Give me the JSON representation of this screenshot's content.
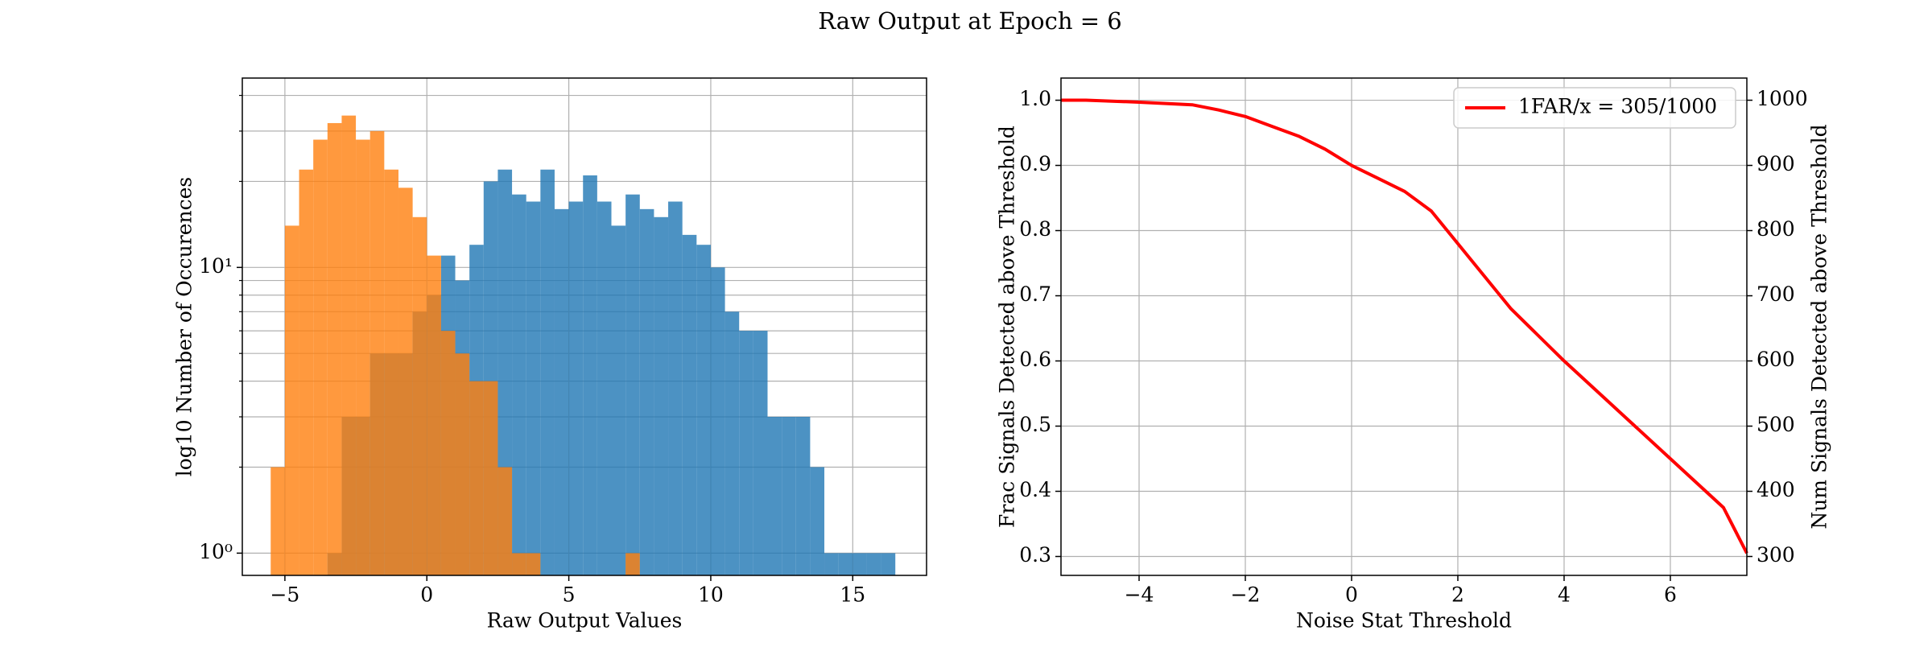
{
  "title": "Raw Output at Epoch = 6",
  "chart_data": [
    {
      "type": "histogram",
      "xlabel": "Raw Output Values",
      "ylabel": "log10 Number of Occurences",
      "log_y": true,
      "grid": true,
      "xlim": [
        -6.5,
        17.6
      ],
      "ylim": [
        0.836,
        46
      ],
      "xticks": [
        {
          "value": -5,
          "label": "−5"
        },
        0,
        5,
        10,
        15
      ],
      "yticks": [
        {
          "value": 1,
          "label": "10⁰"
        },
        {
          "value": 10,
          "label": "10¹"
        }
      ],
      "yminorticks": [
        2,
        3,
        4,
        5,
        6,
        7,
        8,
        9,
        20,
        30,
        40
      ],
      "series": [
        {
          "color": "#1f77b4",
          "bins": [
            -3.5,
            -3,
            -2.5,
            -2,
            -1.5,
            -1,
            -0.5,
            0,
            0.5,
            1,
            1.5,
            2,
            2.5,
            3,
            3.5,
            4,
            4.5,
            5,
            5.5,
            6,
            6.5,
            7,
            7.5,
            8,
            8.5,
            9,
            9.5,
            10,
            10.5,
            11,
            11.5,
            12,
            12.5,
            13,
            13.5,
            14,
            14.5,
            15,
            15.5,
            16,
            16.5
          ],
          "values": [
            1,
            3,
            3,
            5,
            5,
            5,
            7,
            8,
            11,
            9,
            12,
            20,
            22,
            18,
            17,
            22,
            16,
            17,
            21,
            17,
            14,
            18,
            16,
            15,
            17,
            13,
            12,
            10,
            7,
            6,
            6,
            3,
            3,
            3,
            2,
            1,
            1,
            1,
            1,
            1
          ]
        },
        {
          "color": "#ff7f0e",
          "bins": [
            -5.5,
            -5,
            -4.5,
            -4,
            -3.5,
            -3,
            -2.5,
            -2,
            -1.5,
            -1,
            -0.5,
            0,
            0.5,
            1,
            1.5,
            2,
            2.5,
            3,
            3.5,
            4,
            4.5,
            5,
            5.5,
            6,
            6.5,
            7,
            7.5
          ],
          "values": [
            2,
            14,
            22,
            28,
            32,
            34,
            28,
            30,
            22,
            19,
            15,
            11,
            6,
            5,
            4,
            4,
            2,
            1,
            1,
            0,
            0,
            0,
            0,
            0,
            0,
            1
          ]
        }
      ]
    },
    {
      "type": "line",
      "xlabel": "Noise Stat Threshold",
      "ylabel": "Frac Signals Detected above Threshold",
      "y2label": "Num Signals Detected above Threshold",
      "grid": true,
      "legend": "upper right",
      "xlim": [
        -5.47,
        7.44
      ],
      "ylim": [
        0.271,
        1.034
      ],
      "y2lim": [
        271,
        1034
      ],
      "xticks": [
        {
          "value": -4,
          "label": "−4"
        },
        {
          "value": -2,
          "label": "−2"
        },
        0,
        2,
        4,
        6
      ],
      "yticks": [
        0.3,
        0.4,
        0.5,
        0.6,
        0.7,
        0.8,
        0.9,
        {
          "value": 1,
          "label": "1.0"
        }
      ],
      "y2ticks": [
        300,
        400,
        500,
        600,
        700,
        800,
        900,
        1000
      ],
      "x": [
        -5.47,
        -5,
        -4,
        -3,
        -2.5,
        -2,
        -1.5,
        -1,
        -0.5,
        0,
        0.5,
        1,
        1.5,
        2,
        2.5,
        3,
        3.5,
        4,
        5,
        6,
        7,
        7.44
      ],
      "series": [
        {
          "name": "1FAR/x = 305/1000",
          "color": "#ff0000",
          "values": [
            1.0,
            1.0,
            0.997,
            0.993,
            0.985,
            0.975,
            0.96,
            0.945,
            0.925,
            0.9,
            0.88,
            0.86,
            0.83,
            0.78,
            0.73,
            0.68,
            0.64,
            0.6,
            0.525,
            0.45,
            0.375,
            0.305
          ]
        }
      ]
    }
  ]
}
